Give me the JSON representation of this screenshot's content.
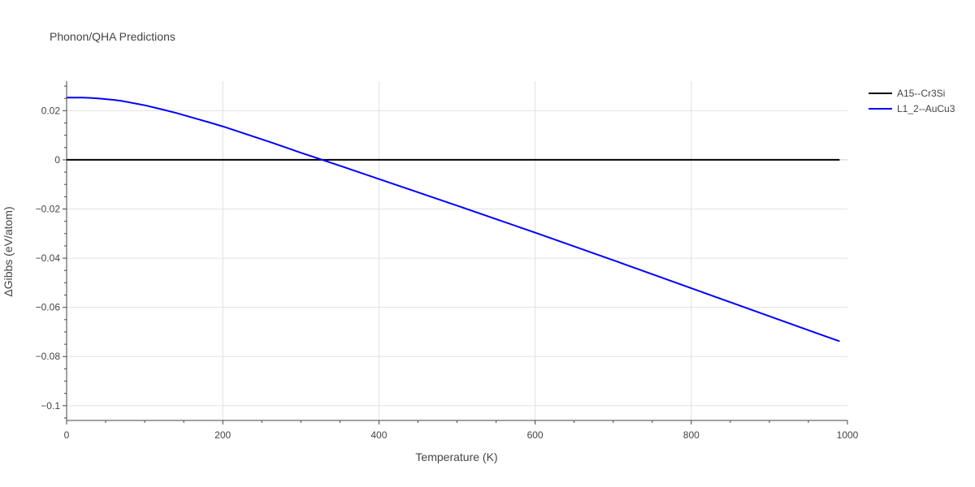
{
  "chart_data": {
    "type": "line",
    "title": "Phonon/QHA Predictions",
    "xlabel": "Temperature (K)",
    "ylabel": "ΔGibbs (eV/atom)",
    "xlim": [
      0,
      1000
    ],
    "ylim": [
      -0.106,
      0.032
    ],
    "x_ticks": [
      0,
      200,
      400,
      600,
      800,
      1000
    ],
    "x_tick_labels": [
      "0",
      "200",
      "400",
      "600",
      "800",
      "1000"
    ],
    "y_ticks": [
      0.02,
      0,
      -0.02,
      -0.04,
      -0.06,
      -0.08,
      -0.1
    ],
    "y_tick_labels": [
      "0.02",
      "0",
      "−0.02",
      "−0.04",
      "−0.06",
      "−0.08",
      "−0.1"
    ],
    "grid": true,
    "legend_position": "top-right",
    "series": [
      {
        "name": "A15--Cr3Si",
        "color": "#000000",
        "x": [
          0,
          990
        ],
        "y": [
          0,
          0
        ]
      },
      {
        "name": "L1_2--AuCu3",
        "color": "#0000ff",
        "x": [
          0,
          10,
          20,
          30,
          40,
          50,
          60,
          70,
          80,
          90,
          100,
          120,
          140,
          160,
          180,
          200,
          220,
          240,
          260,
          280,
          300,
          350,
          400,
          450,
          500,
          550,
          600,
          650,
          700,
          750,
          800,
          850,
          900,
          950,
          990
        ],
        "y": [
          0.0253,
          0.0253,
          0.0253,
          0.0252,
          0.025,
          0.0247,
          0.0244,
          0.024,
          0.0234,
          0.0228,
          0.0222,
          0.0207,
          0.0191,
          0.0173,
          0.0155,
          0.0136,
          0.0115,
          0.0094,
          0.0073,
          0.0051,
          0.0029,
          -0.0024,
          -0.0078,
          -0.0132,
          -0.0186,
          -0.0241,
          -0.0296,
          -0.0352,
          -0.0408,
          -0.0465,
          -0.0522,
          -0.0579,
          -0.0636,
          -0.0693,
          -0.0738
        ]
      }
    ]
  }
}
